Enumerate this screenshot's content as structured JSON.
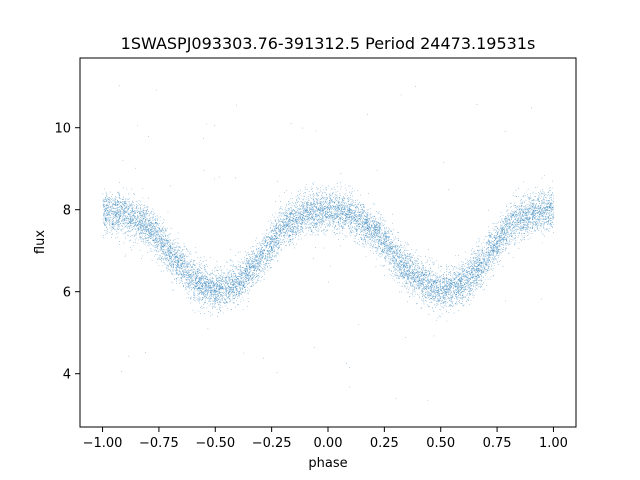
{
  "chart_data": {
    "type": "scatter",
    "title": "1SWASPJ093303.76-391312.5 Period 24473.19531s",
    "xlabel": "phase",
    "ylabel": "flux",
    "xlim": [
      -1.1,
      1.1
    ],
    "ylim": [
      2.7,
      11.7
    ],
    "x_ticks": [
      -1.0,
      -0.75,
      -0.5,
      -0.25,
      0.0,
      0.25,
      0.5,
      0.75,
      1.0
    ],
    "x_tick_labels": [
      "−1.00",
      "−0.75",
      "−0.50",
      "−0.25",
      "0.00",
      "0.25",
      "0.50",
      "0.75",
      "1.00"
    ],
    "y_ticks": [
      4,
      6,
      8,
      10
    ],
    "y_tick_labels": [
      "4",
      "6",
      "8",
      "10"
    ],
    "grid": false,
    "legend": "none",
    "point_color": "#1f77b4",
    "series": [
      {
        "description_of_pattern": "",
        "x": [
          -1.0,
          -0.9,
          -0.8,
          -0.75,
          -0.7,
          -0.6,
          -0.5,
          -0.4,
          -0.3,
          -0.25,
          -0.2,
          -0.1,
          0.0,
          0.1,
          0.2,
          0.25,
          0.3,
          0.4,
          0.5,
          0.6,
          0.7,
          0.75,
          0.8,
          0.9,
          1.0
        ],
        "y": [
          8.0,
          7.9,
          7.6,
          7.3,
          6.9,
          6.3,
          6.0,
          6.2,
          6.8,
          7.2,
          7.6,
          7.9,
          8.0,
          7.9,
          7.5,
          7.2,
          6.8,
          6.3,
          6.0,
          6.2,
          6.8,
          7.2,
          7.6,
          7.9,
          8.0
        ],
        "spread": 0.45,
        "n_points": 12000
      }
    ]
  }
}
